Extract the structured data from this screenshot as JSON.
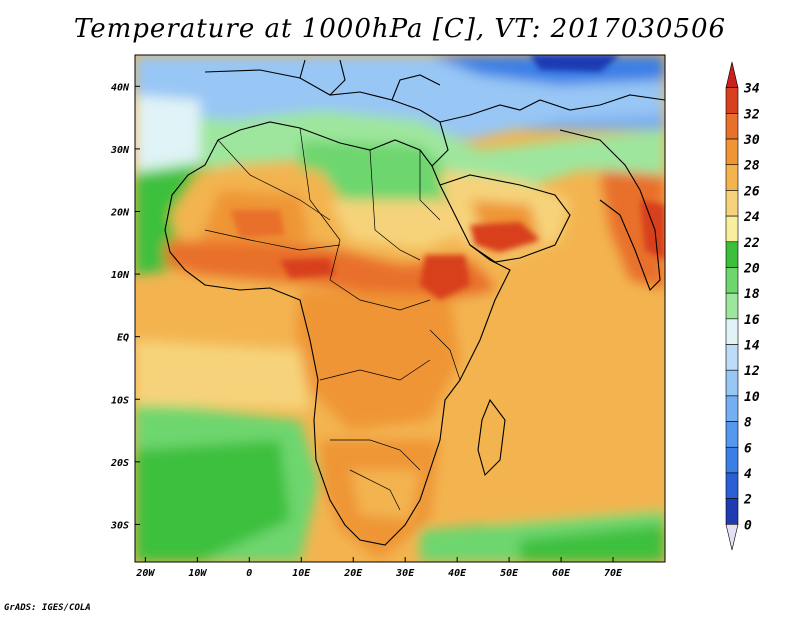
{
  "title": "Temperature at 1000hPa [C], VT: 2017030506",
  "credit": "GrADS: IGES/COLA",
  "lat_labels": [
    "40N",
    "30N",
    "20N",
    "10N",
    "EQ",
    "10S",
    "20S",
    "30S"
  ],
  "lat_values": [
    40,
    30,
    20,
    10,
    0,
    -10,
    -20,
    -30
  ],
  "lon_labels": [
    "20W",
    "10W",
    "0",
    "10E",
    "20E",
    "30E",
    "40E",
    "50E",
    "60E",
    "70E"
  ],
  "lon_values": [
    -20,
    -10,
    0,
    10,
    20,
    30,
    40,
    50,
    60,
    70
  ],
  "extent": {
    "lon": [
      -22,
      80
    ],
    "lat": [
      -36,
      45
    ]
  },
  "colorbar": {
    "labels": [
      "0",
      "2",
      "4",
      "6",
      "8",
      "10",
      "12",
      "14",
      "16",
      "18",
      "20",
      "22",
      "24",
      "26",
      "28",
      "30",
      "32",
      "34"
    ],
    "colors": [
      "#1a1a8f",
      "#1e3bb3",
      "#2a5fd6",
      "#3a7fe6",
      "#5597ee",
      "#76aef2",
      "#98c6f5",
      "#bddcf7",
      "#e0f3f7",
      "#9ee69e",
      "#6ed66e",
      "#3cc03c",
      "#f7ee9e",
      "#f6d37a",
      "#f3b450",
      "#ef9536",
      "#e8702a",
      "#d8401e",
      "#c8201a"
    ]
  }
}
